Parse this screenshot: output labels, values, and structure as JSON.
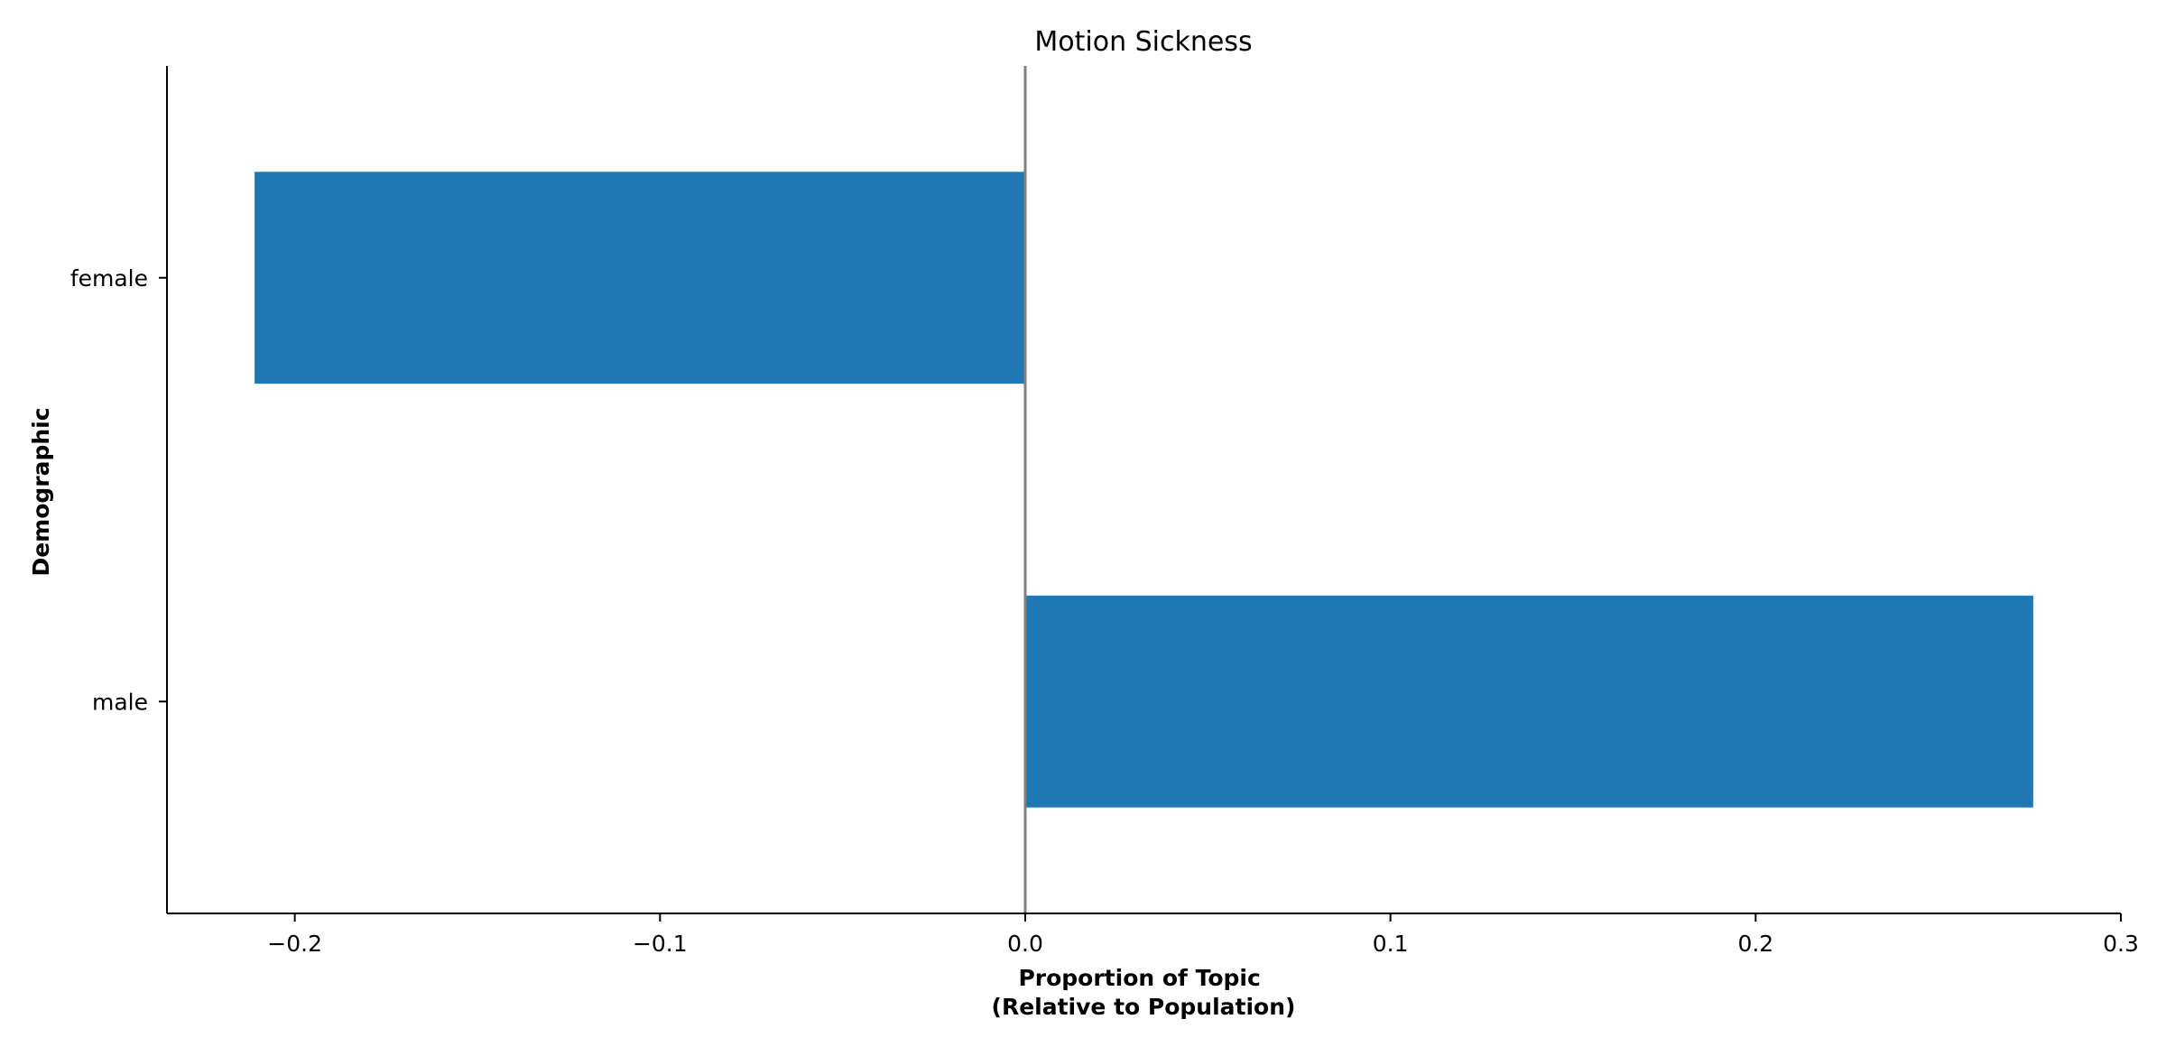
{
  "chart_data": {
    "type": "bar",
    "orientation": "horizontal",
    "title": "Motion Sickness",
    "xlabel": [
      "Proportion of Topic",
      "(Relative to Population)"
    ],
    "ylabel": "Demographic",
    "categories": [
      "female",
      "male"
    ],
    "values": [
      -0.211,
      0.276
    ],
    "xlim": [
      -0.235,
      0.3
    ],
    "xticks": [
      -0.2,
      -0.1,
      0.0,
      0.1,
      0.2,
      0.3
    ],
    "xtick_labels": [
      "−0.2",
      "−0.1",
      "0.0",
      "0.1",
      "0.2",
      "0.3"
    ],
    "bar_color": "#1f77b4",
    "reference_line": {
      "x": 0,
      "color": "#808080"
    },
    "grid": false,
    "legend": "none"
  }
}
